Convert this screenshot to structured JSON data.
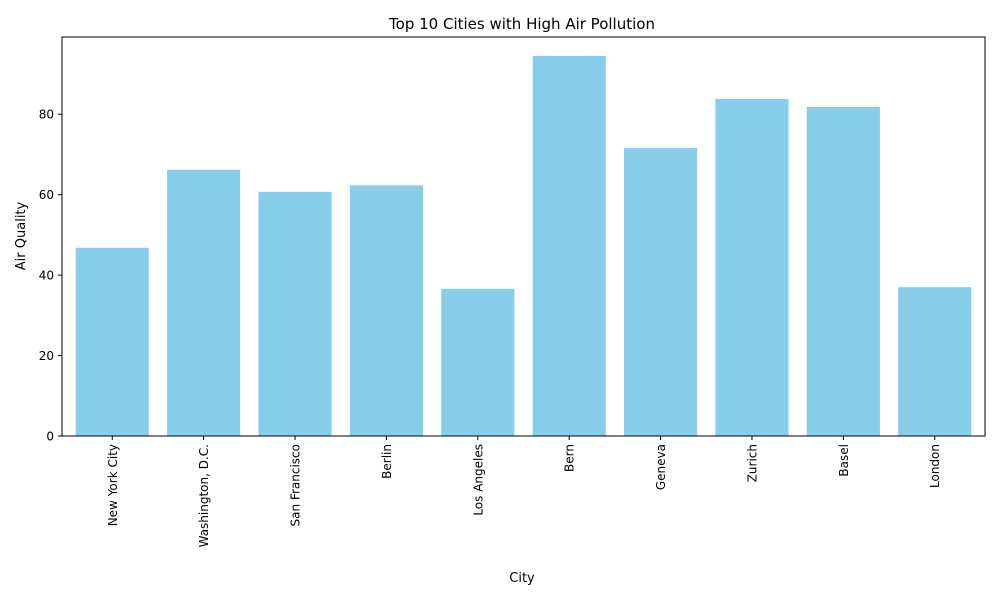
{
  "chart_data": {
    "type": "bar",
    "title": "Top 10 Cities with High Air Pollution",
    "xlabel": "City",
    "ylabel": "Air Quality",
    "categories": [
      "New York City",
      "Washington, D.C.",
      "San Francisco",
      "Berlin",
      "Los Angeles",
      "Bern",
      "Geneva",
      "Zurich",
      "Basel",
      "London"
    ],
    "values": [
      46.8,
      66.2,
      60.7,
      62.3,
      36.6,
      94.5,
      71.6,
      83.8,
      81.8,
      37.0
    ],
    "ylim": [
      0,
      99.2
    ],
    "yticks": [
      0,
      20,
      40,
      60,
      80
    ],
    "grid": false,
    "bar_color": "#87ceeb"
  }
}
